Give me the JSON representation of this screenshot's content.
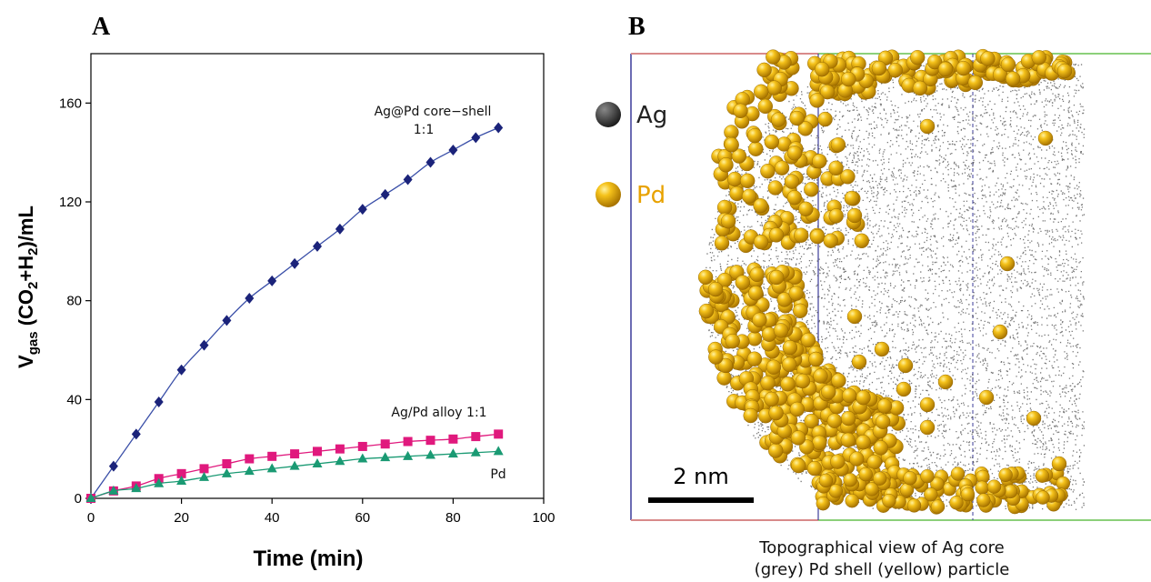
{
  "panels": {
    "a_label": "A",
    "b_label": "B"
  },
  "chart_data": {
    "type": "line",
    "title": "",
    "xlabel": "Time (min)",
    "ylabel_parts": [
      "V",
      "gas",
      " (CO",
      "2",
      "+H",
      "2",
      ")/mL"
    ],
    "xlim": [
      0,
      100
    ],
    "ylim": [
      0,
      180
    ],
    "xticks": [
      0,
      20,
      40,
      60,
      80,
      100
    ],
    "yticks": [
      0,
      40,
      80,
      120,
      160
    ],
    "grid": false,
    "series": [
      {
        "name_lines": [
          "Ag@Pd core−shell",
          "1:1"
        ],
        "color": "#1b237a",
        "line_color": "#3a4fa8",
        "marker": "diamond",
        "x": [
          0,
          5,
          10,
          15,
          20,
          25,
          30,
          35,
          40,
          45,
          50,
          55,
          60,
          65,
          70,
          75,
          80,
          85,
          90
        ],
        "y": [
          0,
          13,
          26,
          39,
          52,
          62,
          72,
          81,
          88,
          95,
          102,
          109,
          117,
          123,
          129,
          136,
          141,
          146,
          150
        ]
      },
      {
        "name_lines": [
          "Ag/Pd alloy 1:1"
        ],
        "color": "#e0197d",
        "line_color": "#e0197d",
        "marker": "square",
        "x": [
          0,
          5,
          10,
          15,
          20,
          25,
          30,
          35,
          40,
          45,
          50,
          55,
          60,
          65,
          70,
          75,
          80,
          85,
          90
        ],
        "y": [
          0,
          3,
          5,
          8,
          10,
          12,
          14,
          16,
          17,
          18,
          19,
          20,
          21,
          22,
          23,
          23.5,
          24,
          25,
          26
        ]
      },
      {
        "name_lines": [
          "Pd"
        ],
        "color": "#1a9a73",
        "line_color": "#1a9a73",
        "marker": "triangle",
        "x": [
          0,
          5,
          10,
          15,
          20,
          25,
          30,
          35,
          40,
          45,
          50,
          55,
          60,
          65,
          70,
          75,
          80,
          85,
          90
        ],
        "y": [
          0,
          3,
          4,
          6,
          7,
          8.5,
          10,
          11,
          12,
          13,
          14,
          15,
          16,
          16.5,
          17,
          17.5,
          18,
          18.5,
          19
        ]
      }
    ]
  },
  "particle": {
    "legend": [
      {
        "label": "Ag",
        "color": "#3a3a3a",
        "text_color": "#222222"
      },
      {
        "label": "Pd",
        "color": "#f0b400",
        "text_color": "#e8a200"
      }
    ],
    "scale_label": "2 nm",
    "caption_lines": [
      "Topographical view of Ag core",
      "(grey) Pd shell (yellow) particle"
    ]
  }
}
